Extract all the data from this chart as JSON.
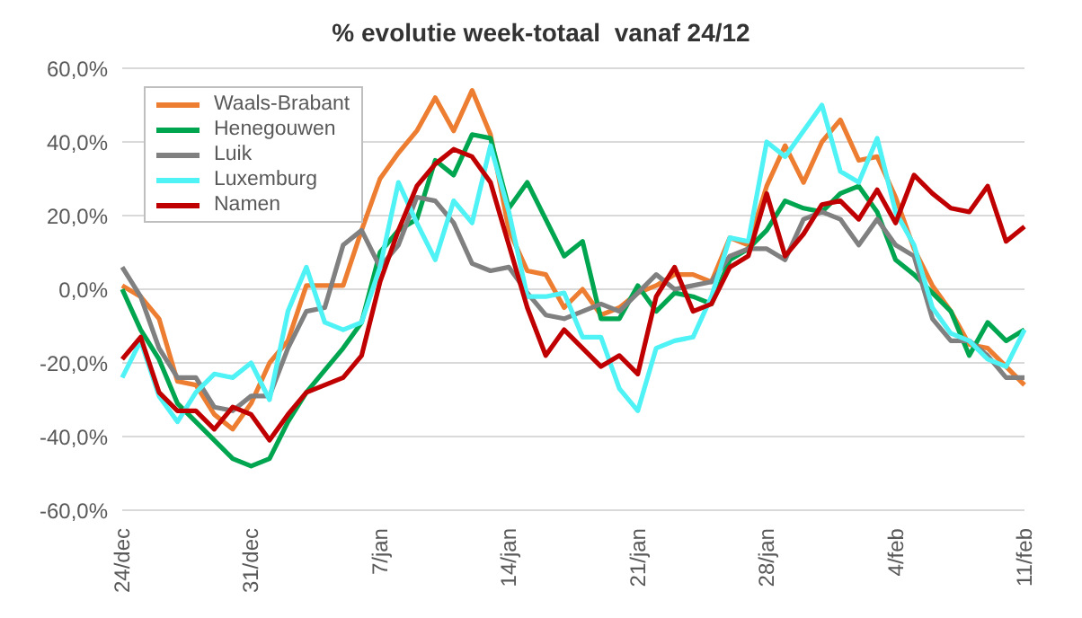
{
  "chart_data": {
    "type": "line",
    "title": "% evolutie week-totaal  vanaf 24/12",
    "categories": [
      "24/dec",
      null,
      null,
      null,
      null,
      null,
      null,
      "31/dec",
      null,
      null,
      null,
      null,
      null,
      null,
      "7/jan",
      null,
      null,
      null,
      null,
      null,
      null,
      "14/jan",
      null,
      null,
      null,
      null,
      null,
      null,
      "21/jan",
      null,
      null,
      null,
      null,
      null,
      null,
      "28/jan",
      null,
      null,
      null,
      null,
      null,
      null,
      "4/feb",
      null,
      null,
      null,
      null,
      null,
      null,
      "11/feb"
    ],
    "series": [
      {
        "name": "Waals-Brabant",
        "color": "#ed7d31",
        "values": [
          1,
          -2,
          -8,
          -25,
          -26,
          -34,
          -38,
          -31,
          -20,
          -14,
          1,
          1,
          1,
          16,
          30,
          37,
          43,
          52,
          43,
          54,
          42,
          16,
          5,
          4,
          -5,
          0,
          -7,
          -5,
          -1,
          1,
          4,
          4,
          2,
          14,
          12,
          28,
          39,
          29,
          40,
          46,
          35,
          36,
          25,
          11,
          1,
          -6,
          -15,
          -16,
          -21,
          -26
        ]
      },
      {
        "name": "Henegouwen",
        "color": "#00a550",
        "values": [
          0,
          -11,
          -19,
          -31,
          -36,
          -41,
          -46,
          -48,
          -46,
          -36,
          -28,
          -22,
          -16,
          -9,
          10,
          16,
          19,
          35,
          31,
          42,
          41,
          22,
          29,
          19,
          9,
          13,
          -8,
          -8,
          1,
          -6,
          -1,
          -2,
          -4,
          8,
          11,
          16,
          24,
          22,
          21,
          26,
          28,
          21,
          8,
          4,
          -1,
          -6,
          -18,
          -9,
          -14,
          -11
        ]
      },
      {
        "name": "Luik",
        "color": "#808080",
        "values": [
          6,
          -2,
          -16,
          -24,
          -24,
          -32,
          -33,
          -29,
          -29,
          -16,
          -6,
          -5,
          12,
          16,
          6,
          12,
          25,
          24,
          18,
          7,
          5,
          6,
          -1,
          -7,
          -8,
          -6,
          -4,
          -6,
          -1,
          4,
          0,
          1,
          2,
          9,
          11,
          11,
          8,
          19,
          21,
          19,
          12,
          19,
          12,
          9,
          -8,
          -14,
          -14,
          -18,
          -24,
          -24
        ]
      },
      {
        "name": "Luxemburg",
        "color": "#4ff2f5",
        "values": [
          -24,
          -14,
          -29,
          -36,
          -28,
          -23,
          -24,
          -20,
          -30,
          -6,
          6,
          -9,
          -11,
          -9,
          6,
          29,
          18,
          8,
          24,
          18,
          39,
          21,
          -2,
          -2,
          -1,
          -13,
          -13,
          -27,
          -33,
          -16,
          -14,
          -13,
          -2,
          14,
          13,
          40,
          36,
          43,
          50,
          32,
          29,
          41,
          21,
          12,
          -5,
          -12,
          -14,
          -19,
          -21,
          -11
        ]
      },
      {
        "name": "Namen",
        "color": "#c00000",
        "values": [
          -19,
          -13,
          -28,
          -33,
          -33,
          -38,
          -32,
          -34,
          -41,
          -34,
          -28,
          -26,
          -24,
          -18,
          2,
          16,
          28,
          34,
          38,
          36,
          29,
          12,
          -5,
          -18,
          -11,
          -16,
          -21,
          -18,
          -23,
          -2,
          6,
          -6,
          -4,
          6,
          9,
          26,
          9,
          15,
          23,
          24,
          19,
          27,
          18,
          31,
          26,
          22,
          21,
          28,
          13,
          17
        ]
      }
    ],
    "ylim": [
      -60,
      60
    ],
    "yticks": [
      {
        "value": -60,
        "label": "-60,0%"
      },
      {
        "value": -40,
        "label": "-40,0%"
      },
      {
        "value": -20,
        "label": "-20,0%"
      },
      {
        "value": 0,
        "label": "0,0%"
      },
      {
        "value": 20,
        "label": "20,0%"
      },
      {
        "value": 40,
        "label": "40,0%"
      },
      {
        "value": 60,
        "label": "60,0%"
      }
    ],
    "grid": "y",
    "legend": "top left",
    "marker": "none",
    "line_style": "solid"
  }
}
